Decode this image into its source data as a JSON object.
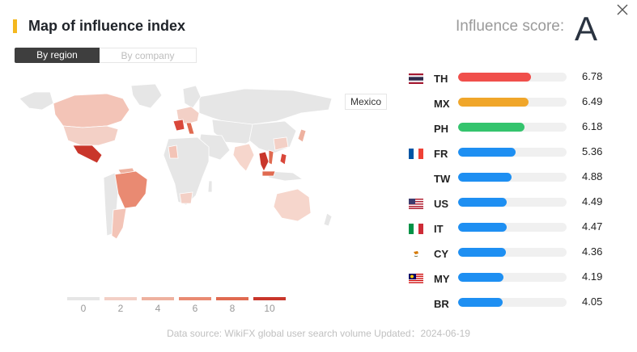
{
  "header": {
    "title": "Map of influence index",
    "score_label": "Influence score:",
    "score_grade": "A",
    "accent": "#f4b81f"
  },
  "tabs": [
    {
      "label": "By region",
      "active": true
    },
    {
      "label": "By company",
      "active": false
    }
  ],
  "map": {
    "tooltip": "Mexico",
    "legend": [
      {
        "label": "0",
        "color": "#e6e6e6"
      },
      {
        "label": "2",
        "color": "#f3d0c6"
      },
      {
        "label": "4",
        "color": "#eeb19f"
      },
      {
        "label": "6",
        "color": "#e98a72"
      },
      {
        "label": "8",
        "color": "#e06a50"
      },
      {
        "label": "10",
        "color": "#c9362b"
      }
    ]
  },
  "ranking": [
    {
      "code": "TH",
      "value": "6.78",
      "fraction": 0.67,
      "color": "#f04f4b",
      "flag": "flag-th"
    },
    {
      "code": "MX",
      "value": "6.49",
      "fraction": 0.65,
      "color": "#f0a62a",
      "flag": ""
    },
    {
      "code": "PH",
      "value": "6.18",
      "fraction": 0.61,
      "color": "#34c46d",
      "flag": ""
    },
    {
      "code": "FR",
      "value": "5.36",
      "fraction": 0.53,
      "color": "#1e8ff2",
      "flag": "flag-fr"
    },
    {
      "code": "TW",
      "value": "4.88",
      "fraction": 0.49,
      "color": "#1e8ff2",
      "flag": ""
    },
    {
      "code": "US",
      "value": "4.49",
      "fraction": 0.45,
      "color": "#1e8ff2",
      "flag": "flag-us"
    },
    {
      "code": "IT",
      "value": "4.47",
      "fraction": 0.45,
      "color": "#1e8ff2",
      "flag": "flag-it"
    },
    {
      "code": "CY",
      "value": "4.36",
      "fraction": 0.44,
      "color": "#1e8ff2",
      "flag": "flag-cy"
    },
    {
      "code": "MY",
      "value": "4.19",
      "fraction": 0.42,
      "color": "#1e8ff2",
      "flag": "flag-my"
    },
    {
      "code": "BR",
      "value": "4.05",
      "fraction": 0.41,
      "color": "#1e8ff2",
      "flag": ""
    }
  ],
  "footer": "Data source: WikiFX global user search volume Updated：2024-06-19"
}
